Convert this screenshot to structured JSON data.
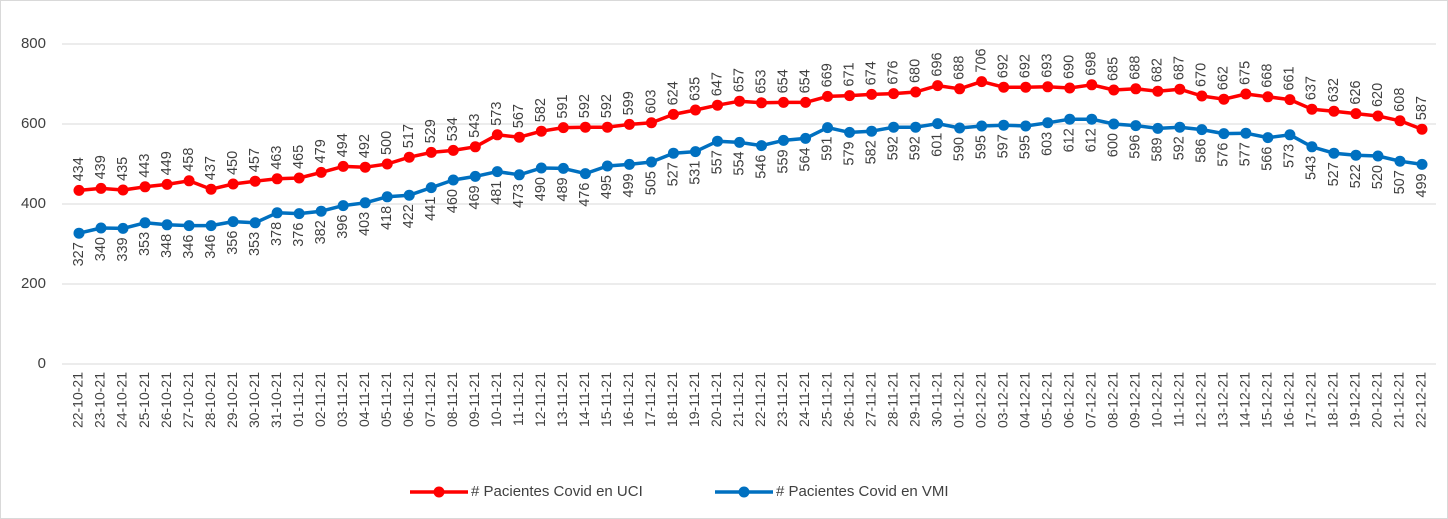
{
  "chart_data": {
    "type": "line",
    "categories": [
      "22-10-21",
      "23-10-21",
      "24-10-21",
      "25-10-21",
      "26-10-21",
      "27-10-21",
      "28-10-21",
      "29-10-21",
      "30-10-21",
      "31-10-21",
      "01-11-21",
      "02-11-21",
      "03-11-21",
      "04-11-21",
      "05-11-21",
      "06-11-21",
      "07-11-21",
      "08-11-21",
      "09-11-21",
      "10-11-21",
      "11-11-21",
      "12-11-21",
      "13-11-21",
      "14-11-21",
      "15-11-21",
      "16-11-21",
      "17-11-21",
      "18-11-21",
      "19-11-21",
      "20-11-21",
      "21-11-21",
      "22-11-21",
      "23-11-21",
      "24-11-21",
      "25-11-21",
      "26-11-21",
      "27-11-21",
      "28-11-21",
      "29-11-21",
      "30-11-21",
      "01-12-21",
      "02-12-21",
      "03-12-21",
      "04-12-21",
      "05-12-21",
      "06-12-21",
      "07-12-21",
      "08-12-21",
      "09-12-21",
      "10-12-21",
      "11-12-21",
      "12-12-21",
      "13-12-21",
      "14-12-21",
      "15-12-21",
      "16-12-21",
      "17-12-21",
      "18-12-21",
      "19-12-21",
      "20-12-21",
      "21-12-21",
      "22-12-21"
    ],
    "series": [
      {
        "name": "# Pacientes Covid en UCI",
        "color": "#ff0000",
        "label_position": "above",
        "values": [
          434,
          439,
          435,
          443,
          449,
          458,
          437,
          450,
          457,
          463,
          465,
          479,
          494,
          492,
          500,
          517,
          529,
          534,
          543,
          573,
          567,
          582,
          591,
          592,
          592,
          599,
          603,
          624,
          635,
          647,
          657,
          653,
          654,
          654,
          669,
          671,
          674,
          676,
          680,
          696,
          688,
          706,
          692,
          692,
          693,
          690,
          698,
          685,
          688,
          682,
          687,
          670,
          662,
          675,
          668,
          661,
          637,
          632,
          626,
          620,
          608,
          587
        ]
      },
      {
        "name": "# Pacientes Covid en VMI",
        "color": "#0070c0",
        "label_position": "below",
        "values": [
          327,
          340,
          339,
          353,
          348,
          346,
          346,
          356,
          353,
          378,
          376,
          382,
          396,
          403,
          418,
          422,
          441,
          460,
          469,
          481,
          473,
          490,
          489,
          476,
          495,
          499,
          505,
          527,
          531,
          557,
          554,
          546,
          559,
          564,
          591,
          579,
          582,
          592,
          592,
          601,
          590,
          595,
          597,
          595,
          603,
          612,
          612,
          600,
          596,
          589,
          592,
          586,
          576,
          577,
          566,
          573,
          543,
          527,
          522,
          520,
          507,
          499
        ]
      }
    ],
    "ylim": [
      0,
      800
    ],
    "yticks": [
      0,
      200,
      400,
      600,
      800
    ],
    "grid": true,
    "legend": "bottom"
  }
}
